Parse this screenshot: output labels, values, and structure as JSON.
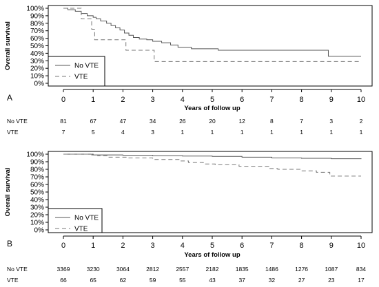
{
  "chart_data": [
    {
      "type": "line",
      "panel_label": "A",
      "ylabel": "Overall survival",
      "xlabel": "Years of follow up",
      "xlim": [
        0,
        10
      ],
      "ylim": [
        0,
        100
      ],
      "x_ticks": [
        "0",
        "1",
        "2",
        "3",
        "4",
        "5",
        "6",
        "7",
        "8",
        "9",
        "10"
      ],
      "y_ticks": [
        "0%",
        "10%",
        "20%",
        "30%",
        "40%",
        "50%",
        "60%",
        "70%",
        "80%",
        "90%",
        "100%"
      ],
      "legend": {
        "position": "bottom-left",
        "entries": [
          "No VTE",
          "VTE"
        ]
      },
      "series": [
        {
          "name": "No VTE",
          "line_style": "solid",
          "color": "#555555",
          "steps": [
            [
              0,
              100
            ],
            [
              0.15,
              98
            ],
            [
              0.4,
              96
            ],
            [
              0.6,
              93
            ],
            [
              0.8,
              90
            ],
            [
              1.0,
              88
            ],
            [
              1.1,
              86
            ],
            [
              1.25,
              83
            ],
            [
              1.45,
              80
            ],
            [
              1.6,
              77
            ],
            [
              1.75,
              74
            ],
            [
              1.9,
              71
            ],
            [
              2.05,
              67
            ],
            [
              2.2,
              64
            ],
            [
              2.35,
              61
            ],
            [
              2.55,
              59
            ],
            [
              2.8,
              58
            ],
            [
              3.0,
              56
            ],
            [
              3.3,
              54
            ],
            [
              3.6,
              51
            ],
            [
              3.85,
              48
            ],
            [
              4.3,
              46
            ],
            [
              5.2,
              44
            ],
            [
              8.9,
              36
            ],
            [
              10,
              36
            ]
          ]
        },
        {
          "name": "VTE",
          "line_style": "dashed",
          "color": "#777777",
          "steps": [
            [
              0,
              100
            ],
            [
              0.6,
              86
            ],
            [
              0.95,
              72
            ],
            [
              1.05,
              58
            ],
            [
              2.1,
              44
            ],
            [
              2.95,
              44
            ],
            [
              3.05,
              29
            ],
            [
              10,
              29
            ]
          ]
        }
      ],
      "risk_table": {
        "rows": [
          {
            "label": "No VTE",
            "values": [
              "81",
              "67",
              "47",
              "34",
              "26",
              "20",
              "12",
              "8",
              "7",
              "3",
              "2"
            ]
          },
          {
            "label": "VTE",
            "values": [
              "7",
              "5",
              "4",
              "3",
              "1",
              "1",
              "1",
              "1",
              "1",
              "1",
              "1"
            ]
          }
        ]
      }
    },
    {
      "type": "line",
      "panel_label": "B",
      "ylabel": "Overall survival",
      "xlabel": "Years of follow up",
      "xlim": [
        0,
        10
      ],
      "ylim": [
        0,
        100
      ],
      "x_ticks": [
        "0",
        "1",
        "2",
        "3",
        "4",
        "5",
        "6",
        "7",
        "8",
        "9",
        "10"
      ],
      "y_ticks": [
        "0%",
        "10%",
        "20%",
        "30%",
        "40%",
        "50%",
        "60%",
        "70%",
        "80%",
        "90%",
        "100%"
      ],
      "legend": {
        "position": "bottom-left",
        "entries": [
          "No VTE",
          "VTE"
        ]
      },
      "series": [
        {
          "name": "No VTE",
          "line_style": "solid",
          "color": "#555555",
          "steps": [
            [
              0,
              100
            ],
            [
              1,
              99
            ],
            [
              2,
              98.5
            ],
            [
              3,
              98
            ],
            [
              4,
              97.5
            ],
            [
              5,
              97
            ],
            [
              6,
              96
            ],
            [
              7,
              95
            ],
            [
              8,
              94.5
            ],
            [
              9,
              94
            ],
            [
              10,
              93.5
            ]
          ]
        },
        {
          "name": "VTE",
          "line_style": "dashed",
          "color": "#777777",
          "steps": [
            [
              0,
              100
            ],
            [
              0.95,
              99
            ],
            [
              1.15,
              98
            ],
            [
              1.5,
              96
            ],
            [
              2.2,
              95
            ],
            [
              3.0,
              93
            ],
            [
              3.9,
              91
            ],
            [
              4.2,
              89
            ],
            [
              4.7,
              87
            ],
            [
              5.1,
              86
            ],
            [
              5.9,
              84
            ],
            [
              6.9,
              81
            ],
            [
              7.2,
              80
            ],
            [
              8.0,
              78
            ],
            [
              8.5,
              76
            ],
            [
              8.95,
              71
            ],
            [
              10,
              71
            ]
          ]
        }
      ],
      "risk_table": {
        "rows": [
          {
            "label": "No VTE",
            "values": [
              "3369",
              "3230",
              "3064",
              "2812",
              "2557",
              "2182",
              "1835",
              "1486",
              "1276",
              "1087",
              "834"
            ]
          },
          {
            "label": "VTE",
            "values": [
              "66",
              "65",
              "62",
              "59",
              "55",
              "43",
              "37",
              "32",
              "27",
              "23",
              "17"
            ]
          }
        ]
      }
    }
  ]
}
